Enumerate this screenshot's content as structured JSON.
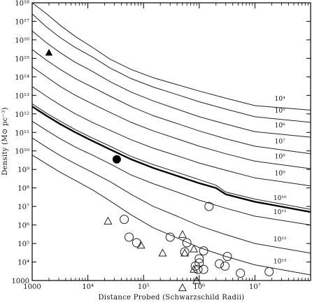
{
  "chart_data": {
    "type": "line",
    "xlabel": "Distance Probed (Schwarzschild Radii)",
    "ylabel": "Density (M⊙ pc⁻³)",
    "x_scale": "log",
    "y_scale": "log",
    "xlim": [
      1000,
      100000000
    ],
    "ylim": [
      1000,
      1000000000000000000
    ],
    "grid": false,
    "x_ticks": [
      {
        "value": 1000,
        "label": "1000"
      },
      {
        "value": 10000,
        "label": "10⁴"
      },
      {
        "value": 100000,
        "label": "10⁵"
      },
      {
        "value": 1000000,
        "label": "10⁶"
      },
      {
        "value": 10000000,
        "label": "10⁷"
      }
    ],
    "y_ticks": [
      {
        "value": 1000000000000000000,
        "label": "10¹⁸"
      },
      {
        "value": 100000000000000000,
        "label": "10¹⁷"
      },
      {
        "value": 10000000000000000,
        "label": "10¹⁶"
      },
      {
        "value": 1000000000000000,
        "label": "10¹⁵"
      },
      {
        "value": 100000000000000,
        "label": "10¹⁴"
      },
      {
        "value": 10000000000000,
        "label": "10¹³"
      },
      {
        "value": 1000000000000,
        "label": "10¹²"
      },
      {
        "value": 100000000000,
        "label": "10¹¹"
      },
      {
        "value": 10000000000,
        "label": "10¹⁰"
      },
      {
        "value": 1000000000,
        "label": "10⁹"
      },
      {
        "value": 100000000,
        "label": "10⁸"
      },
      {
        "value": 10000000,
        "label": "10⁷"
      },
      {
        "value": 1000000,
        "label": "10⁶"
      },
      {
        "value": 100000,
        "label": "10⁵"
      },
      {
        "value": 10000,
        "label": "10⁴"
      },
      {
        "value": 1000,
        "label": "1000"
      }
    ],
    "series": [
      {
        "label": "10⁴",
        "points": [
          [
            1000,
            1e+18
          ],
          [
            1800,
            2.6e+17
          ],
          [
            3200,
            6e+16
          ],
          [
            6000,
            1.5e+16
          ],
          [
            12000,
            4000000000000000.0
          ],
          [
            25000,
            900000000000000.0
          ],
          [
            60000,
            250000000000000.0
          ],
          [
            150000,
            90000000000000.0
          ],
          [
            400000,
            38000000000000.0
          ],
          [
            1000000,
            17000000000000.0
          ],
          [
            3000000,
            7000000000000.0
          ],
          [
            10000000,
            2800000000000.0
          ],
          [
            100000000,
            1600000000000.0
          ]
        ]
      },
      {
        "label": "10⁵",
        "points": [
          [
            1000,
            2.5e+17
          ],
          [
            1800,
            5e+16
          ],
          [
            3200,
            1.3e+16
          ],
          [
            6000,
            3800000000000000.0
          ],
          [
            12000,
            1200000000000000.0
          ],
          [
            25000,
            300000000000000.0
          ],
          [
            60000,
            80000000000000.0
          ],
          [
            150000,
            28000000000000.0
          ],
          [
            400000,
            11000000000000.0
          ],
          [
            1000000,
            4500000000000.0
          ],
          [
            3000000,
            1800000000000.0
          ],
          [
            10000000,
            700000000000.0
          ],
          [
            100000000,
            350000000000.0
          ]
        ]
      },
      {
        "label": "10⁶",
        "points": [
          [
            1000,
            3e+16
          ],
          [
            1800,
            7000000000000000.0
          ],
          [
            3200,
            2000000000000000.0
          ],
          [
            6000,
            600000000000000.0
          ],
          [
            12000,
            200000000000000.0
          ],
          [
            25000,
            55000000000000.0
          ],
          [
            60000,
            15000000000000.0
          ],
          [
            150000,
            5000000000000.0
          ],
          [
            400000,
            1800000000000.0
          ],
          [
            1000000,
            700000000000.0
          ],
          [
            3000000,
            280000000000.0
          ],
          [
            10000000,
            110000000000.0
          ],
          [
            100000000,
            55000000000.0
          ]
        ]
      },
      {
        "label": "10⁷",
        "points": [
          [
            1000,
            3000000000000000.0
          ],
          [
            1800,
            800000000000000.0
          ],
          [
            3200,
            250000000000000.0
          ],
          [
            6000,
            80000000000000.0
          ],
          [
            12000,
            28000000000000.0
          ],
          [
            25000,
            9000000000000.0
          ],
          [
            60000,
            2500000000000.0
          ],
          [
            150000,
            800000000000.0
          ],
          [
            400000,
            300000000000.0
          ],
          [
            1000000,
            120000000000.0
          ],
          [
            3000000,
            45000000000.0
          ],
          [
            10000000,
            18000000000.0
          ],
          [
            100000000,
            7000000000.0
          ]
        ]
      },
      {
        "label": "10⁸",
        "points": [
          [
            1000,
            350000000000000.0
          ],
          [
            1800,
            100000000000000.0
          ],
          [
            3200,
            30000000000000.0
          ],
          [
            6000,
            10000000000000.0
          ],
          [
            12000,
            3500000000000.0
          ],
          [
            25000,
            1200000000000.0
          ],
          [
            60000,
            350000000000.0
          ],
          [
            150000,
            120000000000.0
          ],
          [
            400000,
            45000000000.0
          ],
          [
            1000000,
            18000000000.0
          ],
          [
            3000000,
            7000000000.0
          ],
          [
            10000000,
            2800000000.0
          ],
          [
            100000000,
            1100000000.0
          ]
        ]
      },
      {
        "label": "10⁹",
        "points": [
          [
            1000,
            30000000000000.0
          ],
          [
            1800,
            9000000000000.0
          ],
          [
            3200,
            3000000000000.0
          ],
          [
            6000,
            1000000000000.0
          ],
          [
            12000,
            350000000000.0
          ],
          [
            25000,
            130000000000.0
          ],
          [
            60000,
            40000000000.0
          ],
          [
            150000,
            14000000000.0
          ],
          [
            400000,
            5500000000.0
          ],
          [
            1000000,
            2200000000.0
          ],
          [
            3000000,
            900000000.0
          ],
          [
            10000000,
            350000000.0
          ],
          [
            100000000,
            130000000.0
          ]
        ]
      },
      {
        "label": "",
        "points": [
          [
            1000,
            3500000000000.0
          ],
          [
            1800,
            1100000000000.0
          ],
          [
            3200,
            400000000000.0
          ],
          [
            6000,
            140000000000.0
          ],
          [
            12000,
            50000000000.0
          ],
          [
            25000,
            18000000000.0
          ],
          [
            60000,
            5000000000.0
          ],
          [
            150000,
            1800000000.0
          ],
          [
            400000,
            700000000.0
          ],
          [
            1000000,
            280000000.0
          ],
          [
            2000000,
            140000000.0
          ],
          [
            3000000,
            60000000.0
          ],
          [
            10000000,
            25000000.0
          ],
          [
            100000000,
            7000000.0
          ]
        ]
      },
      {
        "label": "10¹⁰",
        "points": [
          [
            1000,
            2500000000000.0
          ],
          [
            1800,
            800000000000.0
          ],
          [
            3200,
            280000000000.0
          ],
          [
            6000,
            100000000000.0
          ],
          [
            12000,
            35000000000.0
          ],
          [
            25000,
            12000000000.0
          ],
          [
            60000,
            3500000000.0
          ],
          [
            150000,
            1200000000.0
          ],
          [
            400000,
            450000000.0
          ],
          [
            1000000,
            180000000.0
          ],
          [
            2000000,
            100000000.0
          ],
          [
            3000000,
            45000000.0
          ],
          [
            10000000,
            18000000.0
          ],
          [
            100000000,
            5000000.0
          ]
        ]
      },
      {
        "label": "10¹¹",
        "points": [
          [
            1000,
            400000000000.0
          ],
          [
            1800,
            130000000000.0
          ],
          [
            3200,
            45000000000.0
          ],
          [
            6000,
            16000000000.0
          ],
          [
            12000,
            6000000000.0
          ],
          [
            25000,
            2000000000.0
          ],
          [
            60000,
            500000000.0
          ],
          [
            150000,
            170000000.0
          ],
          [
            400000,
            60000000.0
          ],
          [
            1000000,
            22000000.0
          ],
          [
            3000000,
            8000000.0
          ],
          [
            10000000,
            3000000.0
          ],
          [
            100000000,
            1000000.0
          ]
        ]
      },
      {
        "label": "10¹²",
        "points": [
          [
            1000,
            50000000000.0
          ],
          [
            1800,
            16000000000.0
          ],
          [
            3200,
            5500000000.0
          ],
          [
            6000,
            2000000000.0
          ],
          [
            12000,
            700000000.0
          ],
          [
            25000,
            220000000.0
          ],
          [
            60000,
            45000000.0
          ],
          [
            150000,
            10000000.0
          ],
          [
            400000,
            3000000.0
          ],
          [
            1000000,
            900000.0
          ],
          [
            3000000,
            300000.0
          ],
          [
            10000000,
            100000.0
          ],
          [
            100000000,
            30000.0
          ]
        ]
      },
      {
        "label": "10¹³",
        "points": [
          [
            1000,
            6000000000.0
          ],
          [
            1800,
            2000000000.0
          ],
          [
            3200,
            700000000.0
          ],
          [
            6000,
            250000000.0
          ],
          [
            12000,
            80000000.0
          ],
          [
            25000,
            20000000.0
          ],
          [
            60000,
            3500000.0
          ],
          [
            150000,
            700000.0
          ],
          [
            400000,
            200000.0
          ],
          [
            1000000,
            60000.0
          ],
          [
            3000000,
            20000.0
          ],
          [
            10000000,
            7000.0
          ],
          [
            100000000,
            2000.0
          ]
        ]
      }
    ],
    "bold_series_index": 7,
    "points_filled_triangle": [
      [
        2000,
        2000000000000000.0
      ]
    ],
    "points_filled_circle": [
      [
        33000,
        3500000000.0
      ]
    ],
    "points_open_triangle": [
      [
        23000,
        1600000.0
      ],
      [
        90000,
        80000.0
      ],
      [
        220000,
        30000.0
      ],
      [
        500000,
        300000.0
      ],
      [
        550000,
        30000.0
      ],
      [
        800000,
        50000.0
      ],
      [
        800000,
        4000.0
      ],
      [
        900000,
        1000.0
      ],
      [
        500000,
        400
      ]
    ],
    "points_open_circle": [
      [
        45000,
        2000000.0
      ],
      [
        55000,
        220000.0
      ],
      [
        75000,
        110000.0
      ],
      [
        300000,
        220000.0
      ],
      [
        550000,
        35000.0
      ],
      [
        600000,
        110000.0
      ],
      [
        850000,
        6000.0
      ],
      [
        950000,
        4000.0
      ],
      [
        1000000,
        15000.0
      ],
      [
        1200000,
        40000.0
      ],
      [
        1500000,
        10000000.0
      ],
      [
        2300000,
        8000.0
      ],
      [
        2900000,
        6000.0
      ],
      [
        3200000,
        20000.0
      ],
      [
        5500000,
        2500.0
      ],
      [
        18000000.0,
        3000.0
      ],
      [
        1200000,
        4000.0
      ],
      [
        1000000,
        9000.0
      ]
    ]
  }
}
